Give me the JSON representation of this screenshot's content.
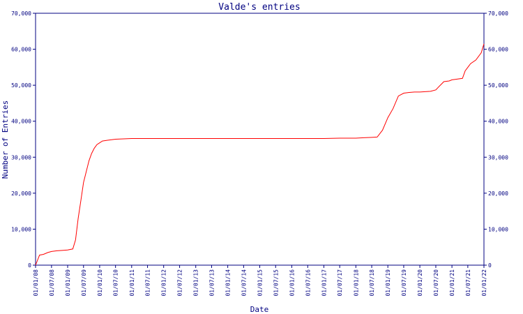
{
  "chart_data": {
    "type": "line",
    "title": "Valde's entries",
    "xlabel": "Date",
    "ylabel": "Number of Entries",
    "ylim": [
      0,
      70000
    ],
    "yticks": [
      0,
      10000,
      20000,
      30000,
      40000,
      50000,
      60000,
      70000
    ],
    "ytick_labels": [
      "0",
      "10,000",
      "20,000",
      "30,000",
      "40,000",
      "50,000",
      "60,000",
      "70,000"
    ],
    "xtick_labels": [
      "01/01/08",
      "01/07/08",
      "01/01/09",
      "01/07/09",
      "01/01/10",
      "01/07/10",
      "01/01/11",
      "01/07/11",
      "01/01/12",
      "01/07/12",
      "01/01/13",
      "01/07/13",
      "01/01/14",
      "01/07/14",
      "01/01/15",
      "01/07/15",
      "01/01/16",
      "01/07/16",
      "01/01/17",
      "01/07/17",
      "01/01/18",
      "01/07/18",
      "01/01/19",
      "01/07/19",
      "01/01/20",
      "01/07/20",
      "01/01/21",
      "01/07/21",
      "01/01/22"
    ],
    "grid": false,
    "legend": "none",
    "line_color": "#ff0000",
    "axis_color": "#000080",
    "series": [
      {
        "x": [
          "2008-01-01",
          "2008-02-15",
          "2008-04-01",
          "2008-05-20",
          "2008-07-01",
          "2008-09-01",
          "2008-11-01",
          "2009-01-01",
          "2009-03-01",
          "2009-04-01",
          "2009-05-01",
          "2009-06-01",
          "2009-07-01",
          "2009-08-01",
          "2009-09-01",
          "2009-10-01",
          "2009-11-01",
          "2009-12-01",
          "2010-01-01",
          "2010-02-01",
          "2010-04-01",
          "2010-07-01",
          "2010-10-01",
          "2011-01-01",
          "2011-07-01",
          "2012-01-01",
          "2013-01-01",
          "2014-01-01",
          "2015-01-01",
          "2016-01-01",
          "2017-01-01",
          "2017-07-01",
          "2018-01-01",
          "2018-04-01",
          "2018-07-01",
          "2018-09-01",
          "2018-11-01",
          "2019-01-01",
          "2019-03-01",
          "2019-05-01",
          "2019-07-01",
          "2019-09-01",
          "2019-11-01",
          "2020-01-01",
          "2020-03-01",
          "2020-05-01",
          "2020-07-01",
          "2020-08-01",
          "2020-10-01",
          "2020-12-01",
          "2021-01-01",
          "2021-02-01",
          "2021-03-01",
          "2021-05-01",
          "2021-06-01",
          "2021-07-01",
          "2021-08-01",
          "2021-10-01",
          "2021-12-01",
          "2022-01-01"
        ],
        "y": [
          0,
          2800,
          3000,
          3500,
          3800,
          4000,
          4100,
          4200,
          4500,
          7000,
          13000,
          18000,
          23000,
          26000,
          29000,
          31000,
          32500,
          33500,
          34000,
          34500,
          34700,
          35000,
          35100,
          35200,
          35200,
          35200,
          35200,
          35200,
          35200,
          35200,
          35200,
          35300,
          35300,
          35400,
          35500,
          35600,
          37500,
          41000,
          43500,
          47000,
          47800,
          48000,
          48100,
          48100,
          48200,
          48300,
          48700,
          49500,
          51000,
          51200,
          51500,
          51600,
          51700,
          51900,
          54000,
          55000,
          56000,
          57000,
          59000,
          61500
        ]
      }
    ]
  }
}
